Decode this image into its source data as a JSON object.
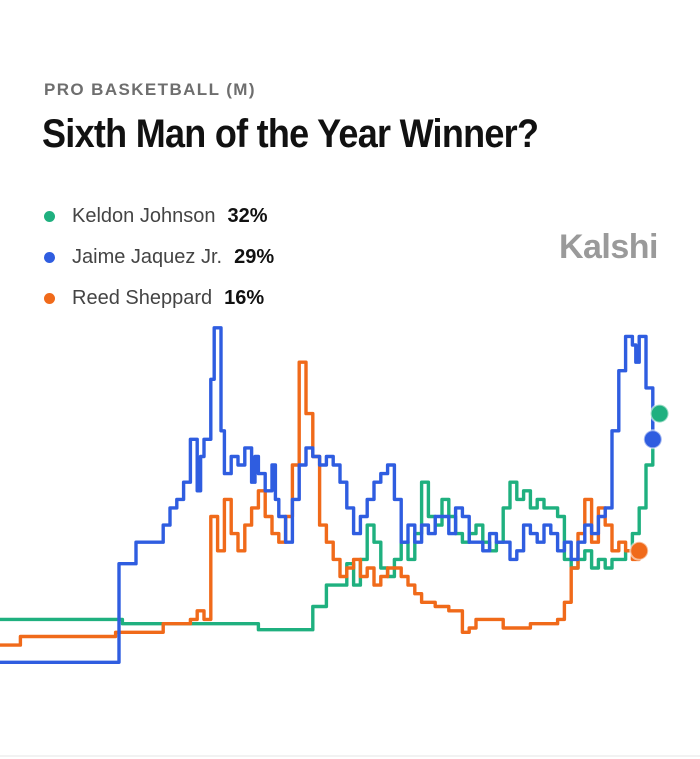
{
  "header": {
    "category": "PRO BASKETBALL (M)",
    "title": "Sixth Man of the Year Winner?",
    "brand": "Kalshi"
  },
  "legend": [
    {
      "name": "Keldon Johnson",
      "value": "32%",
      "color": "#1fb07f"
    },
    {
      "name": "Jaime Jaquez Jr.",
      "value": "29%",
      "color": "#2f5de0"
    },
    {
      "name": "Reed Sheppard",
      "value": "16%",
      "color": "#f06a1a"
    }
  ],
  "chart_data": {
    "type": "line",
    "ylim": [
      0,
      40
    ],
    "xlim": [
      0,
      100
    ],
    "series": [
      {
        "name": "Keldon Johnson",
        "color": "#1fb07f",
        "points": [
          [
            0,
            8
          ],
          [
            18,
            8
          ],
          [
            18,
            7.5
          ],
          [
            38,
            7.5
          ],
          [
            38,
            6.8
          ],
          [
            46,
            6.8
          ],
          [
            46,
            9.5
          ],
          [
            48,
            9.5
          ],
          [
            48,
            12
          ],
          [
            50,
            12
          ],
          [
            51,
            14.5
          ],
          [
            52,
            12
          ],
          [
            53,
            15
          ],
          [
            54,
            19
          ],
          [
            55,
            17
          ],
          [
            56,
            14
          ],
          [
            57,
            13
          ],
          [
            58,
            15
          ],
          [
            59,
            17
          ],
          [
            60,
            15
          ],
          [
            61,
            18
          ],
          [
            62,
            24
          ],
          [
            63,
            20
          ],
          [
            64,
            19
          ],
          [
            65,
            22
          ],
          [
            66,
            20
          ],
          [
            67,
            18
          ],
          [
            68,
            17
          ],
          [
            69,
            18
          ],
          [
            70,
            19
          ],
          [
            71,
            17
          ],
          [
            72,
            16
          ],
          [
            73,
            17
          ],
          [
            74,
            21
          ],
          [
            75,
            24
          ],
          [
            76,
            22
          ],
          [
            77,
            23
          ],
          [
            78,
            21
          ],
          [
            79,
            22
          ],
          [
            80,
            21
          ],
          [
            81,
            21
          ],
          [
            82,
            20
          ],
          [
            83,
            15
          ],
          [
            84,
            14
          ],
          [
            85,
            15
          ],
          [
            86,
            16
          ],
          [
            87,
            14
          ],
          [
            88,
            15
          ],
          [
            89,
            14
          ],
          [
            90,
            15
          ],
          [
            91,
            15
          ],
          [
            92,
            16
          ],
          [
            93,
            18
          ],
          [
            94,
            21
          ],
          [
            95,
            26
          ],
          [
            96,
            32
          ],
          [
            97,
            32
          ]
        ]
      },
      {
        "name": "Jaime Jaquez Jr.",
        "color": "#2f5de0",
        "points": [
          [
            0,
            3
          ],
          [
            17.5,
            3
          ],
          [
            17.5,
            14.5
          ],
          [
            19.5,
            14.5
          ],
          [
            20,
            17
          ],
          [
            24,
            17
          ],
          [
            24,
            19
          ],
          [
            25,
            21
          ],
          [
            26,
            22
          ],
          [
            27,
            24
          ],
          [
            28,
            29
          ],
          [
            29,
            23
          ],
          [
            29.5,
            27
          ],
          [
            30,
            29
          ],
          [
            31,
            36
          ],
          [
            31.5,
            42
          ],
          [
            32,
            42
          ],
          [
            32.5,
            30
          ],
          [
            33,
            25
          ],
          [
            34,
            27
          ],
          [
            35,
            26
          ],
          [
            36,
            28
          ],
          [
            37,
            24
          ],
          [
            37.5,
            27
          ],
          [
            38,
            25
          ],
          [
            39,
            23
          ],
          [
            40,
            26
          ],
          [
            40.5,
            22
          ],
          [
            41,
            20
          ],
          [
            42,
            17
          ],
          [
            43,
            22
          ],
          [
            44,
            26
          ],
          [
            45,
            28
          ],
          [
            46,
            27
          ],
          [
            47,
            26
          ],
          [
            48,
            27
          ],
          [
            49,
            26
          ],
          [
            50,
            24
          ],
          [
            51,
            21
          ],
          [
            52,
            18
          ],
          [
            53,
            20
          ],
          [
            54,
            22
          ],
          [
            55,
            24
          ],
          [
            56,
            25
          ],
          [
            57,
            26
          ],
          [
            58,
            22
          ],
          [
            59,
            17
          ],
          [
            60,
            19
          ],
          [
            61,
            17
          ],
          [
            62,
            19
          ],
          [
            63,
            18
          ],
          [
            64,
            20
          ],
          [
            65,
            20
          ],
          [
            66,
            18
          ],
          [
            67,
            21
          ],
          [
            68,
            20
          ],
          [
            69,
            17
          ],
          [
            70,
            17
          ],
          [
            71,
            16
          ],
          [
            72,
            18
          ],
          [
            73,
            17
          ],
          [
            74,
            17
          ],
          [
            75,
            15
          ],
          [
            76,
            16
          ],
          [
            77,
            19
          ],
          [
            78,
            18
          ],
          [
            79,
            17
          ],
          [
            80,
            19
          ],
          [
            81,
            18
          ],
          [
            82,
            16
          ],
          [
            83,
            17
          ],
          [
            84,
            15
          ],
          [
            85,
            17
          ],
          [
            86,
            19
          ],
          [
            87,
            18
          ],
          [
            88,
            20
          ],
          [
            89,
            21
          ],
          [
            90,
            30
          ],
          [
            91,
            37
          ],
          [
            92,
            41
          ],
          [
            93,
            40
          ],
          [
            93.5,
            38
          ],
          [
            94,
            41
          ],
          [
            95,
            35
          ],
          [
            96,
            29
          ]
        ]
      },
      {
        "name": "Reed Sheppard",
        "color": "#f06a1a",
        "points": [
          [
            0,
            5
          ],
          [
            3,
            5
          ],
          [
            3,
            6
          ],
          [
            17,
            6
          ],
          [
            17,
            6.5
          ],
          [
            24,
            6.5
          ],
          [
            24,
            7.5
          ],
          [
            28,
            7.5
          ],
          [
            28,
            8
          ],
          [
            29,
            9
          ],
          [
            30,
            8
          ],
          [
            31,
            20
          ],
          [
            32,
            16
          ],
          [
            33,
            22
          ],
          [
            34,
            18
          ],
          [
            35,
            16
          ],
          [
            36,
            19
          ],
          [
            37,
            21
          ],
          [
            38,
            23
          ],
          [
            39,
            20
          ],
          [
            40,
            18
          ],
          [
            41,
            17
          ],
          [
            42,
            20
          ],
          [
            43,
            26
          ],
          [
            44,
            38
          ],
          [
            45,
            32
          ],
          [
            46,
            27
          ],
          [
            47,
            19
          ],
          [
            48,
            17
          ],
          [
            49,
            15
          ],
          [
            50,
            13
          ],
          [
            51,
            14
          ],
          [
            52,
            15
          ],
          [
            53,
            13
          ],
          [
            54,
            14
          ],
          [
            55,
            12
          ],
          [
            56,
            13
          ],
          [
            57,
            14
          ],
          [
            58,
            14
          ],
          [
            59,
            13
          ],
          [
            60,
            12
          ],
          [
            61,
            11
          ],
          [
            62,
            10
          ],
          [
            63,
            10
          ],
          [
            64,
            9.5
          ],
          [
            65,
            9.5
          ],
          [
            66,
            9
          ],
          [
            67,
            9
          ],
          [
            68,
            6.5
          ],
          [
            69,
            7
          ],
          [
            70,
            8
          ],
          [
            71,
            8
          ],
          [
            72,
            8
          ],
          [
            73,
            8
          ],
          [
            74,
            7
          ],
          [
            75,
            7
          ],
          [
            76,
            7
          ],
          [
            77,
            7
          ],
          [
            78,
            7.5
          ],
          [
            79,
            7.5
          ],
          [
            80,
            7.5
          ],
          [
            81,
            7.5
          ],
          [
            82,
            8
          ],
          [
            83,
            10
          ],
          [
            84,
            14
          ],
          [
            85,
            18
          ],
          [
            86,
            22
          ],
          [
            87,
            17
          ],
          [
            88,
            21
          ],
          [
            89,
            19
          ],
          [
            90,
            16
          ],
          [
            91,
            17
          ],
          [
            92,
            16
          ],
          [
            93,
            15
          ],
          [
            94,
            16
          ]
        ]
      }
    ]
  }
}
